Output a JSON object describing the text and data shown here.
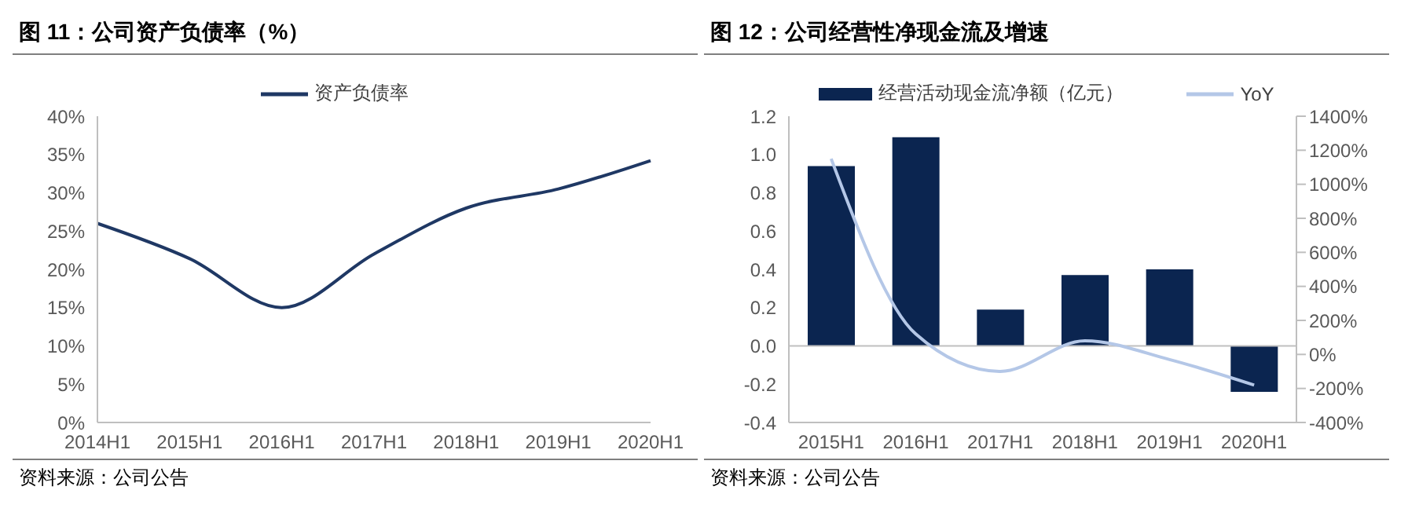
{
  "chart_data": [
    {
      "type": "line",
      "title": "图 11：公司资产负债率（%）",
      "categories": [
        "2014H1",
        "2015H1",
        "2016H1",
        "2017H1",
        "2018H1",
        "2019H1",
        "2020H1"
      ],
      "series": [
        {
          "name": "资产负债率",
          "color": "#1f3864",
          "values": [
            26,
            21.4,
            15,
            22,
            28,
            30.5,
            34.2
          ]
        }
      ],
      "ylim": [
        0,
        40
      ],
      "yticks": [
        {
          "value": 0,
          "label": "0%"
        },
        {
          "value": 5,
          "label": "5%"
        },
        {
          "value": 10,
          "label": "10%"
        },
        {
          "value": 15,
          "label": "15%"
        },
        {
          "value": 20,
          "label": "20%"
        },
        {
          "value": 25,
          "label": "25%"
        },
        {
          "value": 30,
          "label": "30%"
        },
        {
          "value": 35,
          "label": "35%"
        },
        {
          "value": 40,
          "label": "40%"
        }
      ],
      "grid": false,
      "legend": "top",
      "marker": "none",
      "annotations": [
        "资料来源：公司公告"
      ]
    },
    {
      "type": "bar",
      "title": "图 12：公司经营性净现金流及增速",
      "categories": [
        "2015H1",
        "2016H1",
        "2017H1",
        "2018H1",
        "2019H1",
        "2020H1"
      ],
      "series": [
        {
          "name": "经营活动现金流净额（亿元）",
          "color": "#0b2550",
          "values": [
            0.94,
            1.09,
            0.19,
            0.37,
            0.4,
            -0.24
          ]
        },
        {
          "name": "YoY",
          "type": "line",
          "axis": "y2",
          "color": "#b4c7e7",
          "values": [
            1150,
            120,
            -100,
            80,
            -30,
            -180
          ]
        }
      ],
      "ylim": [
        -0.4,
        1.2
      ],
      "yticks": [
        {
          "value": -0.4,
          "label": "-0.4"
        },
        {
          "value": -0.2,
          "label": "-0.2"
        },
        {
          "value": 0,
          "label": "0.0"
        },
        {
          "value": 0.2,
          "label": "0.2"
        },
        {
          "value": 0.4,
          "label": "0.4"
        },
        {
          "value": 0.6,
          "label": "0.6"
        },
        {
          "value": 0.8,
          "label": "0.8"
        },
        {
          "value": 1,
          "label": "1.0"
        },
        {
          "value": 1.2,
          "label": "1.2"
        }
      ],
      "y2lim": [
        -400,
        1400
      ],
      "y2ticks": [
        {
          "value": -400,
          "label": "-400%"
        },
        {
          "value": -200,
          "label": "-200%"
        },
        {
          "value": 0,
          "label": "0%"
        },
        {
          "value": 200,
          "label": "200%"
        },
        {
          "value": 400,
          "label": "400%"
        },
        {
          "value": 600,
          "label": "600%"
        },
        {
          "value": 800,
          "label": "800%"
        },
        {
          "value": 1000,
          "label": "1000%"
        },
        {
          "value": 1200,
          "label": "1200%"
        },
        {
          "value": 1400,
          "label": "1400%"
        }
      ],
      "ref_lines": [
        {
          "axis": "y",
          "value": 0,
          "color": "#bfbfbf"
        }
      ],
      "grid": false,
      "legend": "top",
      "marker": "none",
      "annotations": [
        "资料来源：公司公告"
      ]
    }
  ]
}
